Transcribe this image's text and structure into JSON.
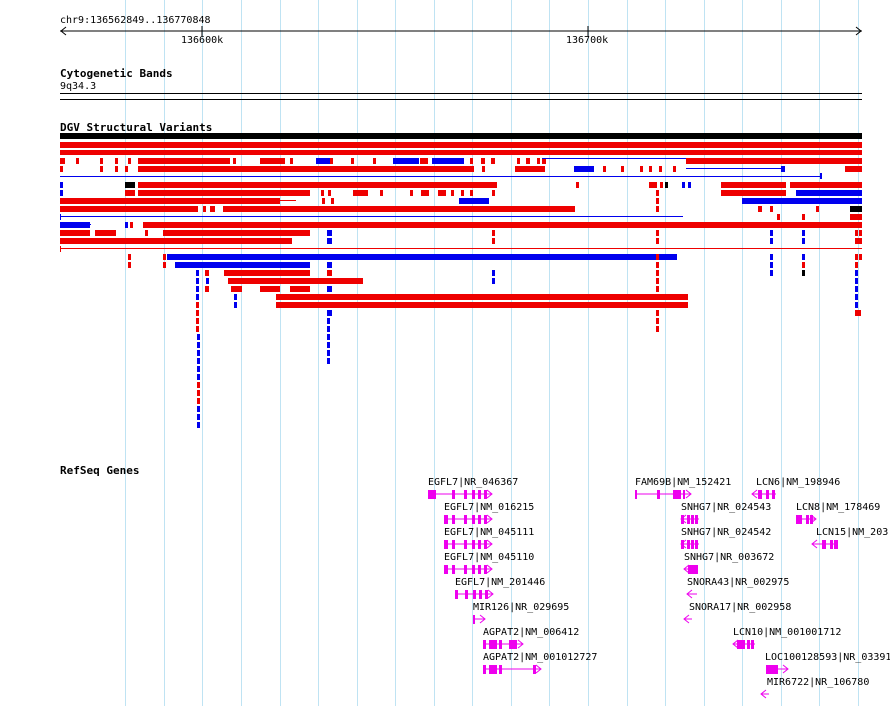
{
  "ruler": {
    "location": "chr9:136562849..136770848",
    "tick_1": "136600k",
    "tick_2": "136700k"
  },
  "tracks": {
    "cytoband": {
      "title": "Cytogenetic Bands",
      "band": "9q34.3"
    },
    "dgv": {
      "title": "DGV Structural Variants"
    },
    "refseq": {
      "title": "RefSeq Genes"
    }
  },
  "colors": {
    "gain": "#ee0000",
    "loss": "#0000ee",
    "both": "#000000",
    "gene": "#ee00ee",
    "grid": "#bfe3f3"
  },
  "genes": [
    "EGFL7|NR_046367",
    "EGFL7|NM_016215",
    "EGFL7|NM_045111",
    "EGFL7|NM_045110",
    "EGFL7|NM_201446",
    "MIR126|NR_029695",
    "AGPAT2|NM_006412",
    "AGPAT2|NM_001012727",
    "FAM69B|NM_152421",
    "SNHG7|NR_024543",
    "SNHG7|NR_024542",
    "SNHG7|NR_003672",
    "SNORA43|NR_002975",
    "SNORA17|NR_002958",
    "LCN6|NM_198946",
    "LCN8|NM_178469",
    "LCN15|NM_203",
    "LCN10|NM_001001712",
    "LOC100128593|NR_03391",
    "MIR6722|NR_106780"
  ]
}
